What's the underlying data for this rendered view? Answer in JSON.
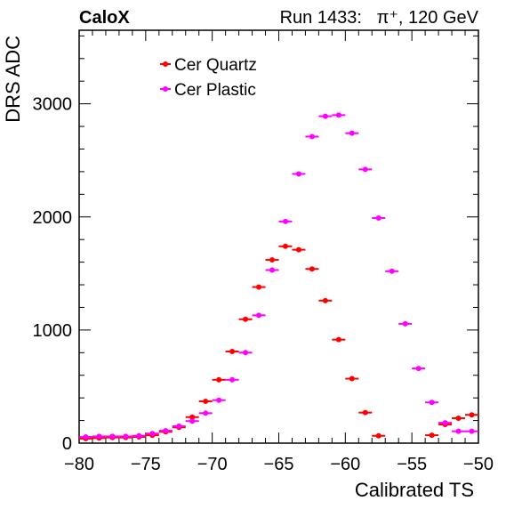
{
  "header": {
    "left_label": "CaloX",
    "right_label": "Run 1433:   π⁺, 120 GeV"
  },
  "chart_data": {
    "type": "scatter",
    "xlabel": "Calibrated TS",
    "ylabel": "DRS ADC",
    "xlim": [
      -80,
      -50
    ],
    "ylim": [
      0,
      3650
    ],
    "x_ticks": [
      -80,
      -75,
      -70,
      -65,
      -60,
      -55,
      -50
    ],
    "x_tick_labels": [
      "−80",
      "−75",
      "−70",
      "−65",
      "−60",
      "−55",
      "−50"
    ],
    "y_ticks": [
      0,
      1000,
      2000,
      3000
    ],
    "y_tick_labels": [
      "0",
      "1000",
      "2000",
      "3000"
    ],
    "bin_width": 1,
    "grid": false,
    "legend_position": "top-left",
    "series": [
      {
        "name": "Cer Quartz",
        "color": "#ff0000",
        "x": [
          -79.5,
          -78.5,
          -77.5,
          -76.5,
          -75.5,
          -74.5,
          -73.5,
          -72.5,
          -71.5,
          -70.5,
          -69.5,
          -68.5,
          -67.5,
          -66.5,
          -65.5,
          -64.5,
          -63.5,
          -62.5,
          -61.5,
          -60.5,
          -59.5,
          -58.5,
          -57.5,
          -53.5,
          -52.5,
          -51.5,
          -50.5
        ],
        "y": [
          40,
          45,
          50,
          50,
          55,
          70,
          100,
          140,
          230,
          370,
          560,
          810,
          1095,
          1380,
          1620,
          1740,
          1710,
          1540,
          1260,
          915,
          570,
          270,
          65,
          70,
          165,
          220,
          250
        ]
      },
      {
        "name": "Cer Plastic",
        "color": "#ff00ff",
        "x": [
          -79.5,
          -78.5,
          -77.5,
          -76.5,
          -75.5,
          -74.5,
          -73.5,
          -72.5,
          -71.5,
          -70.5,
          -69.5,
          -68.5,
          -67.5,
          -66.5,
          -65.5,
          -64.5,
          -63.5,
          -62.5,
          -61.5,
          -60.5,
          -59.5,
          -58.5,
          -57.5,
          -56.5,
          -55.5,
          -54.5,
          -53.5,
          -52.5,
          -51.5,
          -50.5
        ],
        "y": [
          55,
          60,
          60,
          60,
          65,
          85,
          110,
          150,
          195,
          265,
          380,
          560,
          800,
          1130,
          1530,
          1960,
          2380,
          2710,
          2890,
          2900,
          2740,
          2420,
          1990,
          1520,
          1055,
          660,
          360,
          180,
          105,
          105
        ]
      }
    ]
  }
}
